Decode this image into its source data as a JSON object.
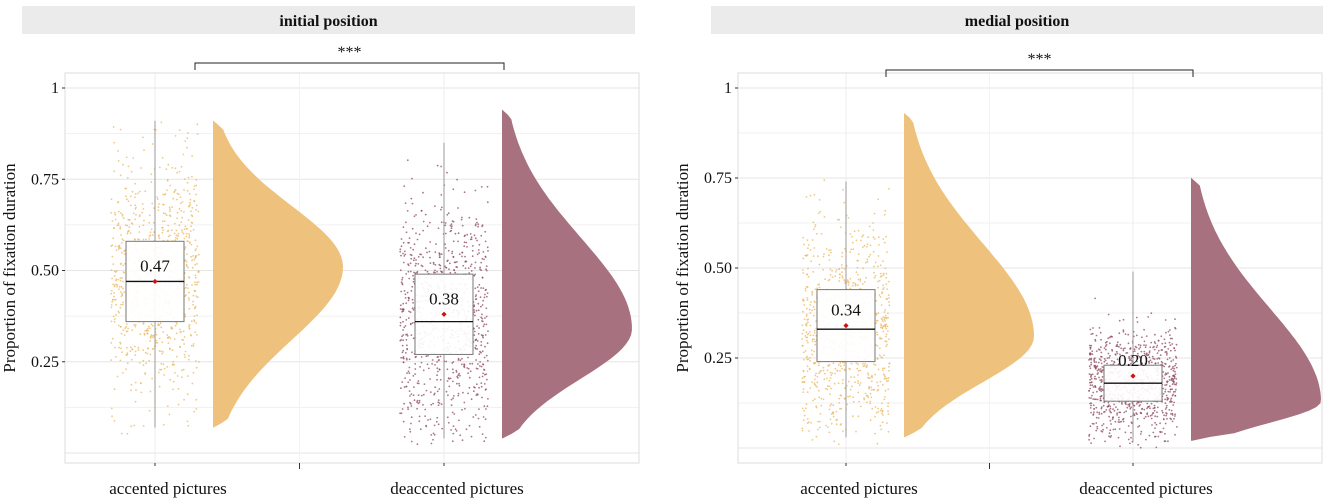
{
  "colors": {
    "accented": "#EEC17C",
    "accented_dot": "#E9B760",
    "deaccented": "#A8717F",
    "deaccented_dot": "#8E4A5E",
    "strip_bg": "#EBEBEB",
    "mean_marker": "#D01010"
  },
  "chart_data": [
    {
      "type": "raincloud",
      "title": "initial position",
      "ylabel": "Proportion of fixation duration",
      "xlabel": "",
      "ylim": [
        0,
        1
      ],
      "yticks": [
        0.25,
        0.5,
        0.75,
        1
      ],
      "ytick_labels": [
        "0.25",
        "0.50",
        "0.75",
        "1"
      ],
      "categories": [
        "accented pictures",
        "deaccented pictures"
      ],
      "significance": "***",
      "groups": [
        {
          "name": "accented pictures",
          "color_key": "accented",
          "mean": 0.47,
          "mean_label": "0.47",
          "q1": 0.36,
          "median": 0.47,
          "q3": 0.58,
          "whisker_low": 0.07,
          "whisker_high": 0.91,
          "density_peak": 0.51,
          "density_range": [
            0.07,
            0.91
          ]
        },
        {
          "name": "deaccented pictures",
          "color_key": "deaccented",
          "mean": 0.38,
          "mean_label": "0.38",
          "q1": 0.27,
          "median": 0.36,
          "q3": 0.49,
          "whisker_low": 0.04,
          "whisker_high": 0.85,
          "density_peak": 0.34,
          "density_range": [
            0.04,
            0.94
          ]
        }
      ]
    },
    {
      "type": "raincloud",
      "title": "medial position",
      "ylabel": "Proportion of fixation duration",
      "xlabel": "",
      "ylim": [
        0,
        1
      ],
      "yticks": [
        0.25,
        0.5,
        0.75,
        1
      ],
      "ytick_labels": [
        "0.25",
        "0.50",
        "0.75",
        "1"
      ],
      "categories": [
        "accented pictures",
        "deaccented pictures"
      ],
      "significance": "***",
      "groups": [
        {
          "name": "accented pictures",
          "color_key": "accented",
          "mean": 0.34,
          "mean_label": "0.34",
          "q1": 0.24,
          "median": 0.33,
          "q3": 0.44,
          "whisker_low": 0.03,
          "whisker_high": 0.74,
          "density_peak": 0.31,
          "density_range": [
            0.03,
            0.93
          ]
        },
        {
          "name": "deaccented pictures",
          "color_key": "deaccented",
          "mean": 0.2,
          "mean_label": "0.20",
          "q1": 0.13,
          "median": 0.18,
          "q3": 0.23,
          "whisker_low": 0.02,
          "whisker_high": 0.49,
          "density_peak": 0.13,
          "density_range": [
            0.02,
            0.75
          ]
        }
      ]
    }
  ]
}
